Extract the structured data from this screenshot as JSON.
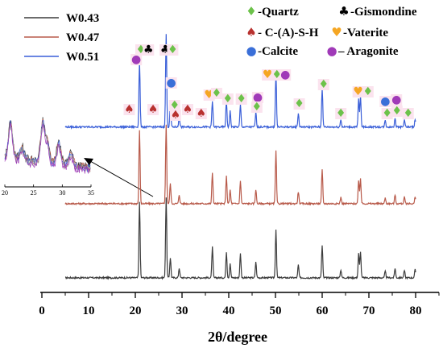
{
  "chart_data": {
    "type": "line",
    "xlabel": "2θ/degree",
    "xlim": [
      0,
      85
    ],
    "xticks": [
      "0",
      "10",
      "20",
      "30",
      "40",
      "50",
      "60",
      "70",
      "80"
    ],
    "grid": false,
    "legend_position": "top-left",
    "series": [
      {
        "name": "W0.43",
        "color": "#3c3c3c",
        "peaks": [
          [
            20.9,
            0.95
          ],
          [
            26.6,
            1.0
          ],
          [
            27.5,
            0.25
          ],
          [
            29.4,
            0.12
          ],
          [
            36.5,
            0.38
          ],
          [
            39.5,
            0.32
          ],
          [
            40.3,
            0.18
          ],
          [
            42.5,
            0.3
          ],
          [
            45.8,
            0.2
          ],
          [
            50.1,
            0.6
          ],
          [
            54.9,
            0.16
          ],
          [
            60.0,
            0.4
          ],
          [
            64.0,
            0.1
          ],
          [
            67.8,
            0.3
          ],
          [
            68.2,
            0.33
          ],
          [
            73.5,
            0.08
          ],
          [
            75.6,
            0.12
          ],
          [
            77.6,
            0.09
          ],
          [
            79.9,
            0.1
          ]
        ]
      },
      {
        "name": "W0.47",
        "color": "#b85a4a",
        "peaks": [
          [
            20.9,
            0.92
          ],
          [
            26.6,
            0.98
          ],
          [
            27.5,
            0.25
          ],
          [
            29.4,
            0.11
          ],
          [
            36.5,
            0.38
          ],
          [
            39.5,
            0.34
          ],
          [
            40.3,
            0.17
          ],
          [
            42.5,
            0.28
          ],
          [
            45.8,
            0.18
          ],
          [
            50.1,
            0.65
          ],
          [
            54.9,
            0.15
          ],
          [
            60.0,
            0.42
          ],
          [
            64.0,
            0.08
          ],
          [
            67.8,
            0.28
          ],
          [
            68.2,
            0.32
          ],
          [
            73.5,
            0.07
          ],
          [
            75.6,
            0.11
          ],
          [
            77.6,
            0.08
          ],
          [
            79.9,
            0.08
          ]
        ]
      },
      {
        "name": "W0.51",
        "color": "#3a5fd8",
        "peaks": [
          [
            20.9,
            0.72
          ],
          [
            26.6,
            1.0
          ],
          [
            27.5,
            0.25
          ],
          [
            29.4,
            0.11
          ],
          [
            36.5,
            0.28
          ],
          [
            39.5,
            0.28
          ],
          [
            40.3,
            0.17
          ],
          [
            42.5,
            0.24
          ],
          [
            45.8,
            0.16
          ],
          [
            50.1,
            0.58
          ],
          [
            54.9,
            0.15
          ],
          [
            60.0,
            0.42
          ],
          [
            64.0,
            0.08
          ],
          [
            67.8,
            0.3
          ],
          [
            68.2,
            0.34
          ],
          [
            73.5,
            0.07
          ],
          [
            75.6,
            0.1
          ],
          [
            77.6,
            0.08
          ],
          [
            79.9,
            0.08
          ]
        ]
      }
    ],
    "phase_legend": [
      {
        "symbol": "♦",
        "color": "#6cc24a",
        "text": "-Quartz"
      },
      {
        "symbol": "♣",
        "color": "#000000",
        "text": "-Gismondine"
      },
      {
        "symbol": "♠",
        "color": "#b8312f",
        "text": "- C-(A)-S-H"
      },
      {
        "symbol": "♥",
        "color": "#f5a623",
        "text": "-Vaterite"
      },
      {
        "symbol": "●",
        "color": "#3a6fd8",
        "text": "-Calcite"
      },
      {
        "symbol": "●",
        "color": "#a03ab8",
        "text": "– Aragonite"
      }
    ],
    "inset": {
      "xticks": [
        "20",
        "25",
        "30",
        "35"
      ]
    }
  }
}
